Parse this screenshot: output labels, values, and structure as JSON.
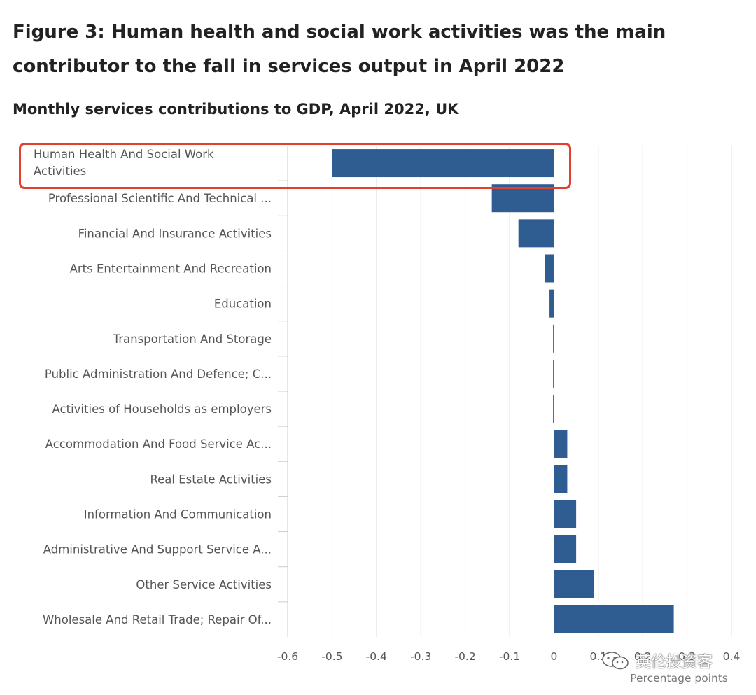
{
  "figure": {
    "title": "Figure 3: Human health and social work activities was the main contributor to the fall in services output in April 2022",
    "subtitle": "Monthly services contributions to GDP, April 2022, UK"
  },
  "chart_data": {
    "type": "bar",
    "orientation": "horizontal",
    "categories": [
      [
        "Human Health And Social Work",
        "Activities"
      ],
      [
        "Professional Scientific And Technical ..."
      ],
      [
        "Financial And Insurance Activities"
      ],
      [
        "Arts Entertainment And Recreation"
      ],
      [
        "Education"
      ],
      [
        "Transportation And Storage"
      ],
      [
        "Public Administration And Defence; C..."
      ],
      [
        "Activities of Households as employers"
      ],
      [
        "Accommodation And Food Service Ac..."
      ],
      [
        "Real Estate Activities"
      ],
      [
        "Information And Communication"
      ],
      [
        "Administrative And Support Service A..."
      ],
      [
        "Other Service Activities"
      ],
      [
        "Wholesale And Retail Trade; Repair Of..."
      ]
    ],
    "values": [
      -0.5,
      -0.14,
      -0.08,
      -0.02,
      -0.01,
      -0.002,
      -0.002,
      -0.002,
      0.03,
      0.03,
      0.05,
      0.05,
      0.09,
      0.27
    ],
    "xlabel": "Percentage points",
    "xlim": [
      -0.6,
      0.4
    ],
    "xticks": [
      "-0.6",
      "-0.5",
      "-0.4",
      "-0.3",
      "-0.2",
      "-0.1",
      "0",
      "0.1",
      "0.2",
      "0.3",
      "0.4"
    ],
    "grid": "vertical",
    "bar_color": "#2f5d91",
    "highlighted_category": "Human Health And Social Work Activities",
    "highlight_color": "#e2402f"
  },
  "watermark": {
    "text": "英伦投资客",
    "icon": "wechat-icon"
  }
}
